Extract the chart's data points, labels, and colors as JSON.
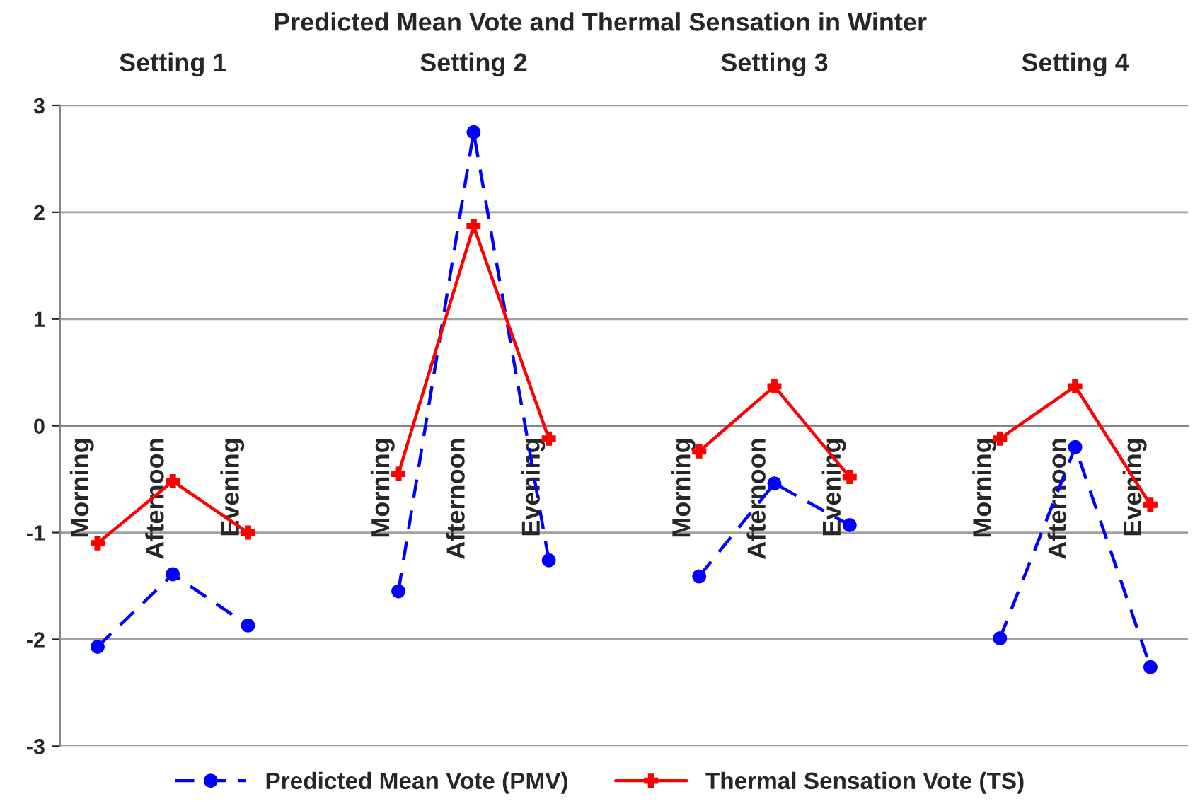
{
  "chart_data": {
    "type": "line",
    "title": "Predicted Mean Vote and Thermal Sensation in Winter",
    "annotations": [
      "Setting 1",
      "Setting 2",
      "Setting 3",
      "Setting 4"
    ],
    "categories": [
      "Morning",
      "Afternoon",
      "Evening",
      null,
      "Morning",
      "Afternoon",
      "Evening",
      null,
      "Morning",
      "Afternoon",
      "Evening",
      null,
      "Morning",
      "Afternoon",
      "Evening"
    ],
    "series": [
      {
        "name": "Predicted Mean Vote (PMV)",
        "color": "#0000ff",
        "marker": "circle",
        "line_style": "dashed",
        "values": [
          -2.07,
          -1.39,
          -1.87,
          null,
          -1.55,
          2.75,
          -1.26,
          null,
          -1.41,
          -0.54,
          -0.93,
          null,
          -1.99,
          -0.2,
          -2.26
        ]
      },
      {
        "name": "Thermal Sensation Vote (TS)",
        "color": "#ff0000",
        "marker": "cross",
        "line_style": "solid",
        "values": [
          -1.1,
          -0.52,
          -1.0,
          null,
          -0.45,
          1.87,
          -0.12,
          null,
          -0.24,
          0.37,
          -0.48,
          null,
          -0.12,
          0.37,
          -0.74
        ]
      }
    ],
    "ylim": [
      -3,
      3
    ],
    "yticks": [
      -3,
      -2,
      -1,
      0,
      1,
      2,
      3
    ],
    "grid": "y",
    "legend": "bottom"
  }
}
